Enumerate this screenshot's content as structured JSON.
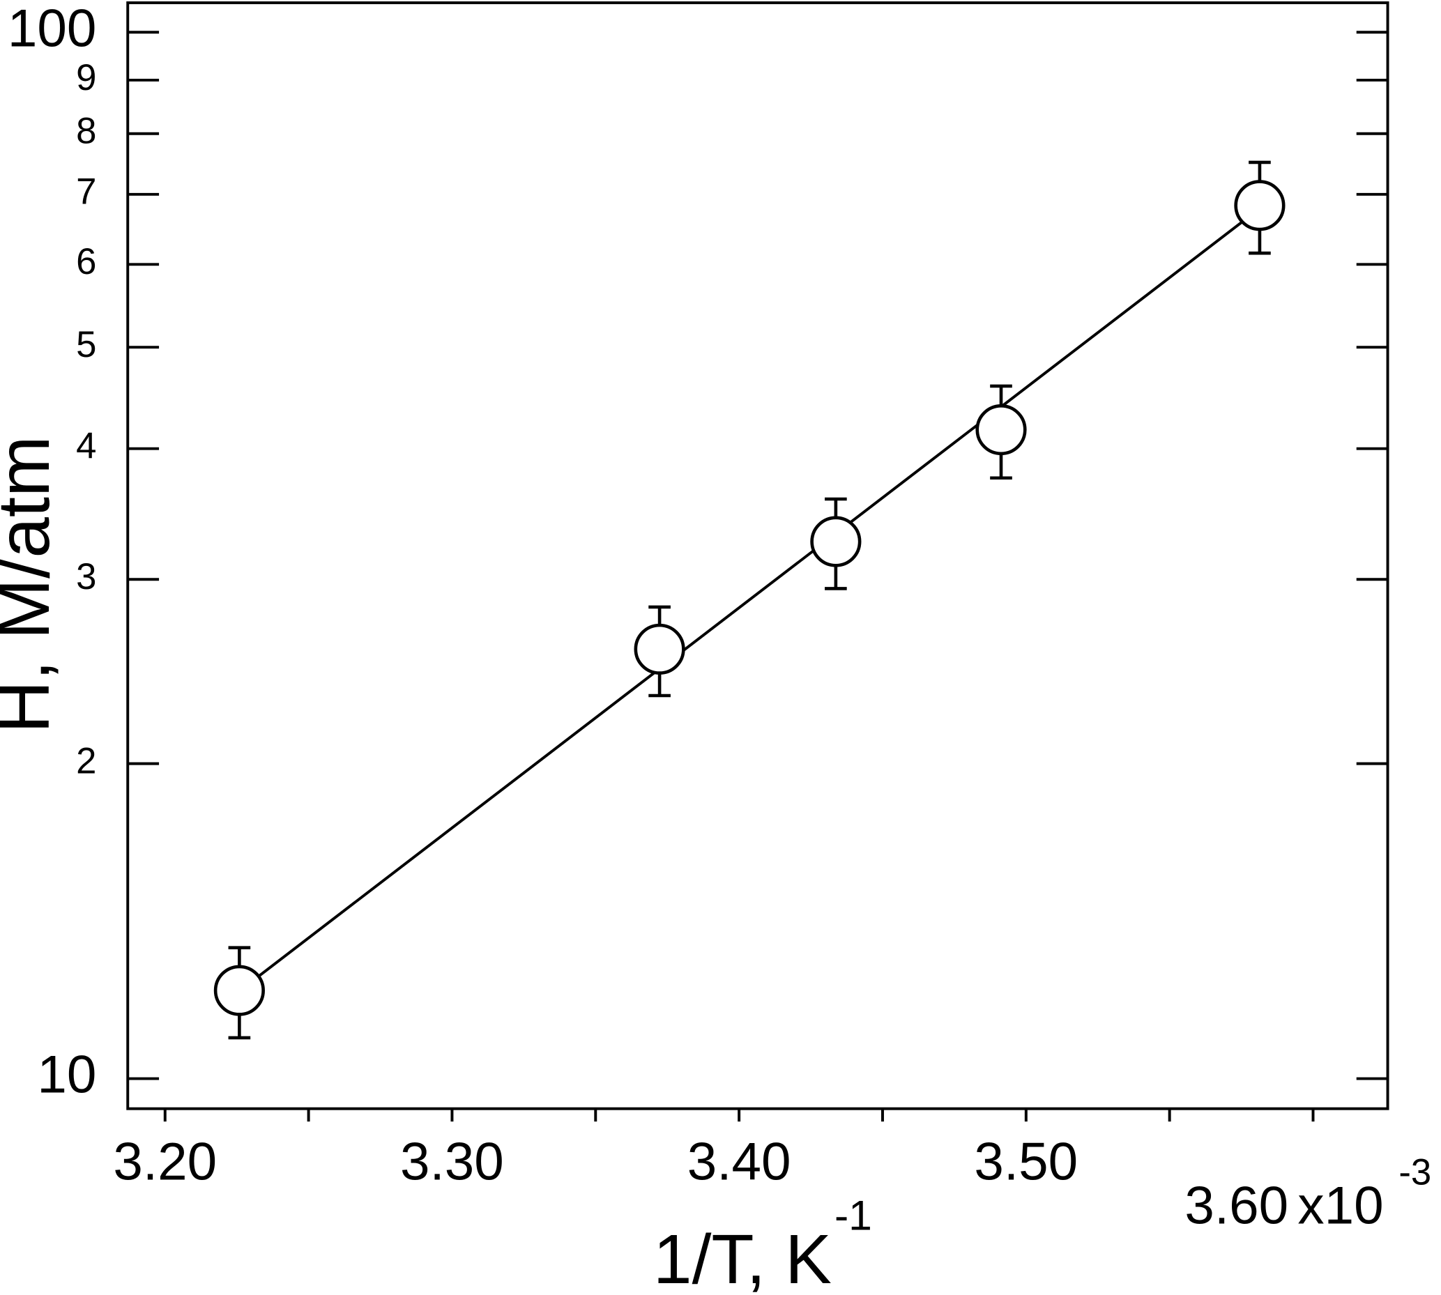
{
  "chart_data": {
    "type": "scatter",
    "ylabel": "H, M/atm",
    "xlabel": "1/T, K",
    "xlabel_sup": "-1",
    "x_multiplier": "x10",
    "x_multiplier_sup": "-3",
    "xlim": [
      3.187,
      3.626
    ],
    "ylim": [
      9.36,
      106.7
    ],
    "log_y": true,
    "xticks": [
      {
        "value": 3.2,
        "label": "3.20"
      },
      {
        "value": 3.3,
        "label": "3.30"
      },
      {
        "value": 3.4,
        "label": "3.40"
      },
      {
        "value": 3.5,
        "label": "3.50"
      },
      {
        "value": 3.6,
        "label": "3.60"
      }
    ],
    "xminor_ticks": [
      3.25,
      3.35,
      3.45,
      3.55
    ],
    "yticks": [
      10,
      {
        "value": 20,
        "label": "2"
      },
      {
        "value": 30,
        "label": "3"
      },
      {
        "value": 40,
        "label": "4"
      },
      {
        "value": 50,
        "label": "5"
      },
      {
        "value": 60,
        "label": "6"
      },
      {
        "value": 70,
        "label": "7"
      },
      {
        "value": 80,
        "label": "8"
      },
      {
        "value": 90,
        "label": "9"
      },
      100
    ],
    "series": [
      {
        "color": "#000000",
        "x": [
          3.2259,
          3.3723,
          3.4337,
          3.4913,
          3.5814
        ],
        "values": [
          12.14,
          25.73,
          32.6,
          41.7,
          68.3
        ],
        "errors": [
          1.2,
          2.5,
          3.2,
          4.2,
          6.8
        ]
      }
    ],
    "fit": {
      "color": "#000000",
      "x": [
        3.229,
        3.576
      ],
      "values": [
        12.31,
        66.1
      ]
    }
  }
}
